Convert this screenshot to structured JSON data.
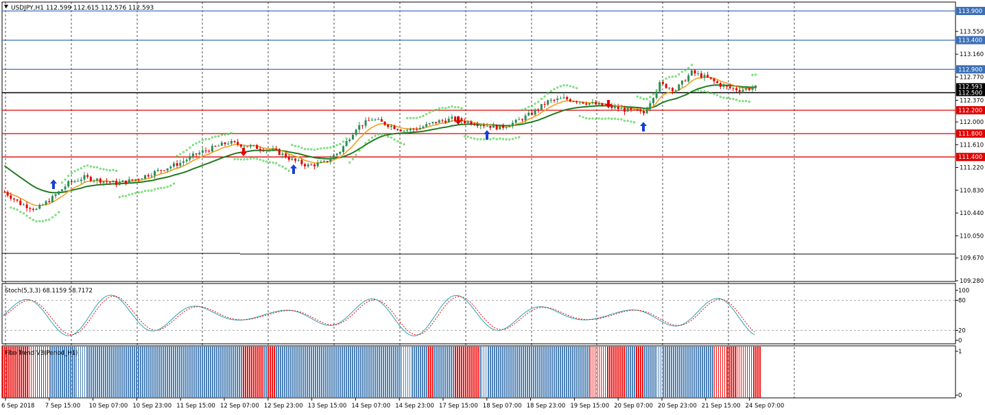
{
  "header": {
    "symbol_line": "USDJPY,H1  112.599 112.615 112.576 112.593",
    "menu_arrow": "triangle-down"
  },
  "price_axis": {
    "ticks": [
      "113.550",
      "113.160",
      "112.770",
      "112.370",
      "112.000",
      "111.610",
      "111.220",
      "110.830",
      "110.440",
      "110.050",
      "109.670",
      "109.280"
    ],
    "ylim": [
      109.28,
      113.94
    ]
  },
  "levels": [
    {
      "label": "113.900",
      "value": 113.9,
      "color": "#3b6fb6"
    },
    {
      "label": "113.400",
      "value": 113.4,
      "color": "#3b6fb6"
    },
    {
      "label": "112.900",
      "value": 112.9,
      "color": "#3b6fb6"
    },
    {
      "label": "112.200",
      "value": 112.2,
      "color": "#e00000"
    },
    {
      "label": "111.800",
      "value": 111.8,
      "color": "#e00000"
    },
    {
      "label": "111.400",
      "value": 111.4,
      "color": "#e00000"
    }
  ],
  "current_price": {
    "label": "112.593",
    "value": 112.593
  },
  "black_line": {
    "label": "112.500",
    "value": 112.5
  },
  "stoch": {
    "title": "Stoch(5,3,3) 68.1159 58.7172",
    "ticks": [
      "100",
      "80",
      "20",
      "0"
    ]
  },
  "trend": {
    "title": "Fibo Trend V3(Period_H1)",
    "ticks": [
      "1",
      "0"
    ]
  },
  "time_axis": [
    "6 Sep 2018",
    "7 Sep 15:00",
    "10 Sep 07:00",
    "10 Sep 23:00",
    "11 Sep 15:00",
    "12 Sep 07:00",
    "12 Sep 23:00",
    "13 Sep 15:00",
    "14 Sep 07:00",
    "14 Sep 23:00",
    "17 Sep 15:00",
    "18 Sep 07:00",
    "18 Sep 23:00",
    "19 Sep 15:00",
    "20 Sep 07:00",
    "20 Sep 23:00",
    "21 Sep 15:00",
    "24 Sep 07:00"
  ],
  "colors": {
    "bull": "#2e8b57",
    "bear": "#e00000",
    "ma_fast": "#f0a020",
    "ma_slow": "#1f7a1f",
    "sar": "#33cc33",
    "stoch_main": "#2aa0b0",
    "stoch_signal": "#e00000",
    "trend_up": "#4a7fb5",
    "trend_down": "#ee1111"
  },
  "chart_data": {
    "type": "candlestick",
    "price_path": [
      [
        0,
        110.8
      ],
      [
        5,
        110.6
      ],
      [
        10,
        110.5
      ],
      [
        15,
        110.7
      ],
      [
        20,
        110.95
      ],
      [
        25,
        111.05
      ],
      [
        30,
        111.0
      ],
      [
        35,
        110.95
      ],
      [
        40,
        111.0
      ],
      [
        45,
        111.1
      ],
      [
        50,
        111.2
      ],
      [
        55,
        111.3
      ],
      [
        60,
        111.45
      ],
      [
        65,
        111.55
      ],
      [
        70,
        111.65
      ],
      [
        75,
        111.6
      ],
      [
        80,
        111.55
      ],
      [
        85,
        111.5
      ],
      [
        90,
        111.35
      ],
      [
        95,
        111.25
      ],
      [
        100,
        111.3
      ],
      [
        105,
        111.5
      ],
      [
        110,
        111.9
      ],
      [
        115,
        112.05
      ],
      [
        120,
        111.95
      ],
      [
        125,
        111.85
      ],
      [
        130,
        111.9
      ],
      [
        135,
        112.0
      ],
      [
        140,
        112.05
      ],
      [
        145,
        112.0
      ],
      [
        150,
        111.95
      ],
      [
        155,
        111.9
      ],
      [
        160,
        112.0
      ],
      [
        165,
        112.15
      ],
      [
        170,
        112.35
      ],
      [
        175,
        112.4
      ],
      [
        180,
        112.35
      ],
      [
        185,
        112.3
      ],
      [
        190,
        112.25
      ],
      [
        195,
        112.2
      ],
      [
        200,
        112.15
      ],
      [
        205,
        112.65
      ],
      [
        210,
        112.55
      ],
      [
        215,
        112.85
      ],
      [
        220,
        112.75
      ],
      [
        225,
        112.6
      ],
      [
        230,
        112.55
      ],
      [
        235,
        112.59
      ]
    ]
  }
}
